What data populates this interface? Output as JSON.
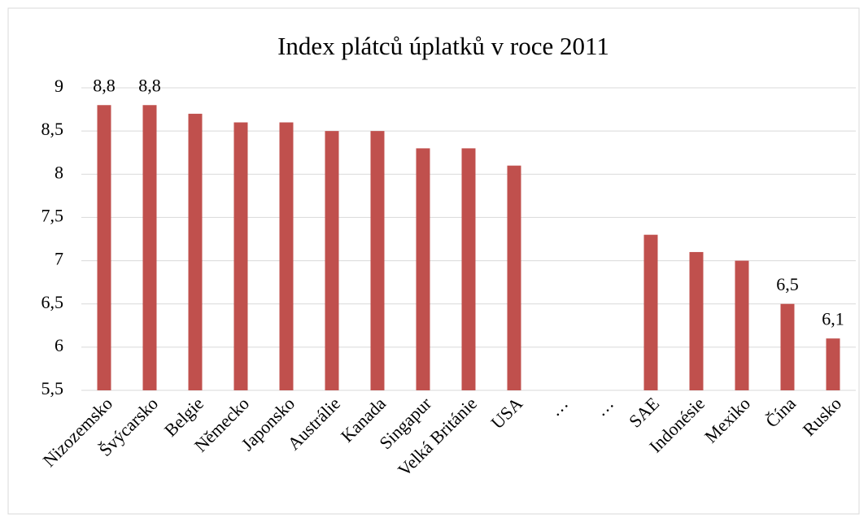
{
  "chart_data": {
    "type": "bar",
    "title": "Index plátců úplatků v roce 2011",
    "categories": [
      "Nizozemsko",
      "Švýcarsko",
      "Belgie",
      "Německo",
      "Japonsko",
      "Austrálie",
      "Kanada",
      "Singapur",
      "Velká Británie",
      "USA",
      "…",
      "…",
      "SAE",
      "Indonésie",
      "Mexiko",
      "Čína",
      "Rusko"
    ],
    "values": [
      8.8,
      8.8,
      8.7,
      8.6,
      8.6,
      8.5,
      8.5,
      8.3,
      8.3,
      8.1,
      null,
      null,
      7.3,
      7.1,
      7.0,
      6.5,
      6.1
    ],
    "value_labels": [
      "8,8",
      "8,8",
      null,
      null,
      null,
      null,
      null,
      null,
      null,
      null,
      null,
      null,
      null,
      null,
      null,
      "6,5",
      "6,1"
    ],
    "color": "#c0504d",
    "ylim": [
      5.5,
      9
    ],
    "yticks": [
      {
        "value": 5.5,
        "label": "5,5"
      },
      6,
      {
        "value": 6.5,
        "label": "6,5"
      },
      7,
      {
        "value": 7.5,
        "label": "7,5"
      },
      8,
      {
        "value": 8.5,
        "label": "8,5"
      },
      9
    ],
    "grid": true
  }
}
